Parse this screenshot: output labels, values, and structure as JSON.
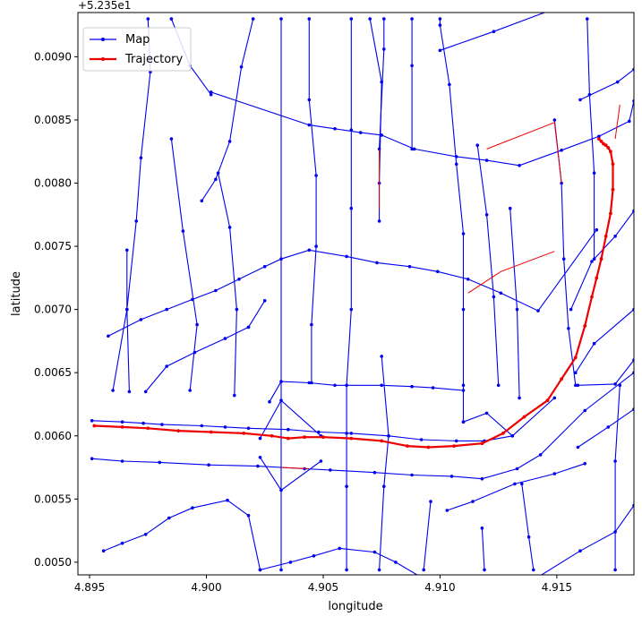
{
  "chart_data": {
    "type": "line",
    "title": "",
    "xlabel": "longitude",
    "ylabel": "latitude",
    "offset_label": "+5.235e1",
    "xlim": [
      4.8945,
      4.9183
    ],
    "ylim": [
      0.0049,
      0.00935
    ],
    "xticks": [
      4.895,
      4.9,
      4.905,
      4.91,
      4.915
    ],
    "yticks": [
      0.005,
      0.0055,
      0.006,
      0.0065,
      0.007,
      0.0075,
      0.008,
      0.0085,
      0.009
    ],
    "grid": false,
    "legend": {
      "placement": "top-left",
      "entries": [
        {
          "name": "Map",
          "color": "#0000ee"
        },
        {
          "name": "Trajectory",
          "color": "#ee0000"
        }
      ]
    },
    "map_segments": [
      [
        [
          4.8951,
          0.00612
        ],
        [
          4.8964,
          0.00611
        ],
        [
          4.8973,
          0.0061
        ],
        [
          4.8981,
          0.00609
        ],
        [
          4.8998,
          0.00608
        ],
        [
          4.9008,
          0.00607
        ],
        [
          4.9018,
          0.00606
        ],
        [
          4.9035,
          0.00605
        ],
        [
          4.9048,
          0.00603
        ],
        [
          4.9062,
          0.00602
        ],
        [
          4.9078,
          0.006
        ],
        [
          4.9092,
          0.00597
        ],
        [
          4.9107,
          0.00596
        ],
        [
          4.9119,
          0.00596
        ],
        [
          4.9131,
          0.006
        ],
        [
          4.9149,
          0.0063
        ]
      ],
      [
        [
          4.8951,
          0.00582
        ],
        [
          4.8964,
          0.0058
        ],
        [
          4.898,
          0.00579
        ],
        [
          4.9001,
          0.00577
        ],
        [
          4.9022,
          0.00576
        ],
        [
          4.9042,
          0.00574
        ],
        [
          4.9053,
          0.00573
        ],
        [
          4.9072,
          0.00571
        ],
        [
          4.9088,
          0.00569
        ],
        [
          4.9105,
          0.00568
        ],
        [
          4.9118,
          0.00566
        ],
        [
          4.9133,
          0.00574
        ],
        [
          4.9143,
          0.00585
        ],
        [
          4.9162,
          0.0062
        ],
        [
          4.9183,
          0.0065
        ]
      ],
      [
        [
          4.8958,
          0.00679
        ],
        [
          4.8972,
          0.00692
        ],
        [
          4.8983,
          0.007
        ],
        [
          4.8994,
          0.00708
        ],
        [
          4.9004,
          0.00715
        ],
        [
          4.9014,
          0.00724
        ],
        [
          4.9025,
          0.00734
        ],
        [
          4.9032,
          0.0074
        ],
        [
          4.9044,
          0.00747
        ],
        [
          4.906,
          0.00742
        ],
        [
          4.9073,
          0.00737
        ],
        [
          4.9087,
          0.00734
        ],
        [
          4.9099,
          0.0073
        ],
        [
          4.9112,
          0.00724
        ],
        [
          4.9126,
          0.00713
        ],
        [
          4.9142,
          0.00699
        ],
        [
          4.9167,
          0.00763
        ]
      ],
      [
        [
          4.9002,
          0.00872
        ],
        [
          4.9044,
          0.00846
        ],
        [
          4.9055,
          0.00843
        ],
        [
          4.9066,
          0.0084
        ],
        [
          4.9075,
          0.00838
        ],
        [
          4.9089,
          0.00827
        ],
        [
          4.9107,
          0.00821
        ],
        [
          4.912,
          0.00818
        ],
        [
          4.9134,
          0.00814
        ],
        [
          4.9152,
          0.00826
        ],
        [
          4.9168,
          0.00837
        ],
        [
          4.9181,
          0.00849
        ],
        [
          4.9183,
          0.00865
        ]
      ],
      [
        [
          4.9027,
          0.00627
        ],
        [
          4.9032,
          0.00643
        ],
        [
          4.9044,
          0.00642
        ],
        [
          4.9055,
          0.0064
        ],
        [
          4.9075,
          0.0064
        ],
        [
          4.9088,
          0.00639
        ],
        [
          4.9097,
          0.00638
        ],
        [
          4.911,
          0.00636
        ]
      ],
      [
        [
          4.9023,
          0.00598
        ],
        [
          4.9032,
          0.00628
        ],
        [
          4.9049,
          0.006
        ]
      ],
      [
        [
          4.9023,
          0.00583
        ],
        [
          4.9032,
          0.00557
        ],
        [
          4.9049,
          0.0058
        ]
      ],
      [
        [
          4.911,
          0.00611
        ],
        [
          4.912,
          0.00618
        ],
        [
          4.9131,
          0.006
        ]
      ],
      [
        [
          4.8956,
          0.00509
        ],
        [
          4.8964,
          0.00515
        ],
        [
          4.8974,
          0.00522
        ],
        [
          4.8984,
          0.00535
        ],
        [
          4.8994,
          0.00543
        ],
        [
          4.9009,
          0.00549
        ],
        [
          4.9018,
          0.00537
        ],
        [
          4.9023,
          0.00494
        ]
      ],
      [
        [
          4.9023,
          0.00494
        ],
        [
          4.9036,
          0.005
        ],
        [
          4.9046,
          0.00505
        ],
        [
          4.9057,
          0.00511
        ],
        [
          4.9072,
          0.00508
        ],
        [
          4.9081,
          0.005
        ],
        [
          4.9092,
          0.00488
        ],
        [
          4.9107,
          0.00475
        ]
      ],
      [
        [
          4.9103,
          0.00541
        ],
        [
          4.9114,
          0.00548
        ],
        [
          4.9132,
          0.00562
        ],
        [
          4.9149,
          0.0057
        ],
        [
          4.9162,
          0.00578
        ]
      ],
      [
        [
          4.9159,
          0.00591
        ],
        [
          4.9172,
          0.00607
        ],
        [
          4.9183,
          0.00621
        ]
      ],
      [
        [
          4.9183,
          0.00545
        ],
        [
          4.9175,
          0.00524
        ],
        [
          4.916,
          0.00509
        ],
        [
          4.914,
          0.00486
        ]
      ],
      [
        [
          4.91,
          0.00905
        ],
        [
          4.9123,
          0.0092
        ],
        [
          4.9152,
          0.0094
        ]
      ],
      [
        [
          4.916,
          0.00866
        ],
        [
          4.9176,
          0.0088
        ],
        [
          4.9183,
          0.0089
        ]
      ],
      [
        [
          4.9156,
          0.007
        ],
        [
          4.9165,
          0.00738
        ],
        [
          4.9175,
          0.00758
        ],
        [
          4.9183,
          0.00778
        ]
      ],
      [
        [
          4.9158,
          0.0065
        ],
        [
          4.9166,
          0.00673
        ],
        [
          4.9183,
          0.007
        ]
      ],
      [
        [
          4.9159,
          0.0064
        ],
        [
          4.9175,
          0.00641
        ],
        [
          4.9183,
          0.0066
        ]
      ],
      [
        [
          4.9032,
          0.0093
        ],
        [
          4.9032,
          0.00494
        ]
      ],
      [
        [
          4.9044,
          0.0093
        ],
        [
          4.9044,
          0.00866
        ],
        [
          4.9047,
          0.00806
        ],
        [
          4.9047,
          0.0075
        ],
        [
          4.9045,
          0.00688
        ],
        [
          4.9045,
          0.00642
        ]
      ],
      [
        [
          4.9062,
          0.0093
        ],
        [
          4.9062,
          0.00842
        ],
        [
          4.9062,
          0.0078
        ],
        [
          4.9062,
          0.007
        ],
        [
          4.906,
          0.0064
        ],
        [
          4.906,
          0.00602
        ],
        [
          4.906,
          0.0056
        ],
        [
          4.906,
          0.00494
        ]
      ],
      [
        [
          4.9076,
          0.0093
        ],
        [
          4.9076,
          0.00906
        ],
        [
          4.9074,
          0.00827
        ]
      ],
      [
        [
          4.9088,
          0.0093
        ],
        [
          4.9088,
          0.00893
        ],
        [
          4.9088,
          0.00827
        ]
      ],
      [
        [
          4.91,
          0.0093
        ],
        [
          4.91,
          0.00925
        ],
        [
          4.9104,
          0.00878
        ],
        [
          4.9107,
          0.00815
        ],
        [
          4.911,
          0.0076
        ],
        [
          4.911,
          0.007
        ],
        [
          4.911,
          0.0064
        ],
        [
          4.911,
          0.00611
        ]
      ],
      [
        [
          4.9116,
          0.0083
        ],
        [
          4.912,
          0.00775
        ],
        [
          4.9123,
          0.0071
        ],
        [
          4.9125,
          0.0064
        ]
      ],
      [
        [
          4.913,
          0.0078
        ],
        [
          4.9133,
          0.007
        ],
        [
          4.9134,
          0.0063
        ]
      ],
      [
        [
          4.9149,
          0.0085
        ],
        [
          4.9152,
          0.008
        ],
        [
          4.9153,
          0.0074
        ],
        [
          4.9155,
          0.00685
        ],
        [
          4.9158,
          0.0064
        ]
      ],
      [
        [
          4.9163,
          0.0093
        ],
        [
          4.9164,
          0.0087
        ],
        [
          4.9166,
          0.00808
        ],
        [
          4.9166,
          0.0074
        ]
      ],
      [
        [
          4.9177,
          0.0064
        ],
        [
          4.9175,
          0.0058
        ],
        [
          4.9175,
          0.00494
        ]
      ],
      [
        [
          4.907,
          0.0093
        ],
        [
          4.9075,
          0.0088
        ],
        [
          4.9074,
          0.008
        ],
        [
          4.9074,
          0.0077
        ]
      ],
      [
        [
          4.902,
          0.0093
        ],
        [
          4.9015,
          0.00892
        ],
        [
          4.901,
          0.00833
        ],
        [
          4.9004,
          0.00803
        ],
        [
          4.8998,
          0.00786
        ]
      ],
      [
        [
          4.8985,
          0.0093
        ],
        [
          4.8993,
          0.00893
        ],
        [
          4.9002,
          0.0087
        ]
      ],
      [
        [
          4.8975,
          0.0093
        ],
        [
          4.8976,
          0.00888
        ],
        [
          4.8972,
          0.0082
        ],
        [
          4.897,
          0.0077
        ],
        [
          4.8966,
          0.007
        ],
        [
          4.896,
          0.00636
        ]
      ],
      [
        [
          4.8985,
          0.00835
        ],
        [
          4.899,
          0.00762
        ],
        [
          4.8996,
          0.00688
        ],
        [
          4.8993,
          0.00636
        ]
      ],
      [
        [
          4.9005,
          0.00808
        ],
        [
          4.901,
          0.00765
        ],
        [
          4.9013,
          0.007
        ],
        [
          4.9012,
          0.00632
        ]
      ],
      [
        [
          4.8966,
          0.00747
        ],
        [
          4.8966,
          0.007
        ],
        [
          4.8967,
          0.00635
        ]
      ],
      [
        [
          4.8974,
          0.00635
        ],
        [
          4.8983,
          0.00655
        ],
        [
          4.8995,
          0.00666
        ],
        [
          4.9008,
          0.00677
        ],
        [
          4.9018,
          0.00686
        ]
      ],
      [
        [
          4.9018,
          0.00686
        ],
        [
          4.9025,
          0.00707
        ]
      ],
      [
        [
          4.9075,
          0.00663
        ],
        [
          4.9078,
          0.006
        ],
        [
          4.9076,
          0.0056
        ],
        [
          4.9074,
          0.00494
        ]
      ],
      [
        [
          4.9096,
          0.00548
        ],
        [
          4.9093,
          0.00494
        ]
      ],
      [
        [
          4.9135,
          0.00562
        ],
        [
          4.9138,
          0.0052
        ],
        [
          4.914,
          0.00494
        ]
      ],
      [
        [
          4.9118,
          0.00527
        ],
        [
          4.9119,
          0.00494
        ]
      ]
    ],
    "map_links": [
      [
        [
          4.9074,
          0.00827
        ],
        [
          4.9074,
          0.0078
        ]
      ],
      [
        [
          4.912,
          0.00827
        ],
        [
          4.9149,
          0.00848
        ],
        [
          4.9152,
          0.008
        ]
      ],
      [
        [
          4.9112,
          0.00713
        ],
        [
          4.9126,
          0.0073
        ],
        [
          4.9149,
          0.00746
        ]
      ],
      [
        [
          4.9177,
          0.00862
        ],
        [
          4.9175,
          0.00835
        ]
      ],
      [
        [
          4.9032,
          0.00575
        ],
        [
          4.9044,
          0.00574
        ]
      ]
    ],
    "series": [
      {
        "name": "Trajectory",
        "color": "#ee0000",
        "x": [
          4.8952,
          4.8964,
          4.8975,
          4.8988,
          4.9002,
          4.9016,
          4.9028,
          4.9035,
          4.9042,
          4.905,
          4.9062,
          4.9075,
          4.9086,
          4.9095,
          4.9106,
          4.9118,
          4.9127,
          4.9136,
          4.9146,
          4.9152,
          4.9158,
          4.9162,
          4.9165,
          4.9167,
          4.9169,
          4.9171,
          4.9173,
          4.9174,
          4.9174,
          4.9173,
          4.9172,
          4.9171,
          4.917,
          4.9169,
          4.9168
        ],
        "y": [
          0.00608,
          0.00607,
          0.00606,
          0.00604,
          0.00603,
          0.00602,
          0.006,
          0.00598,
          0.00599,
          0.00599,
          0.00598,
          0.00596,
          0.00592,
          0.00591,
          0.00592,
          0.00594,
          0.00602,
          0.00615,
          0.00628,
          0.00645,
          0.00662,
          0.00687,
          0.0071,
          0.00725,
          0.0074,
          0.00758,
          0.00776,
          0.00795,
          0.00815,
          0.00825,
          0.00828,
          0.0083,
          0.00831,
          0.00833,
          0.00835
        ]
      }
    ]
  }
}
